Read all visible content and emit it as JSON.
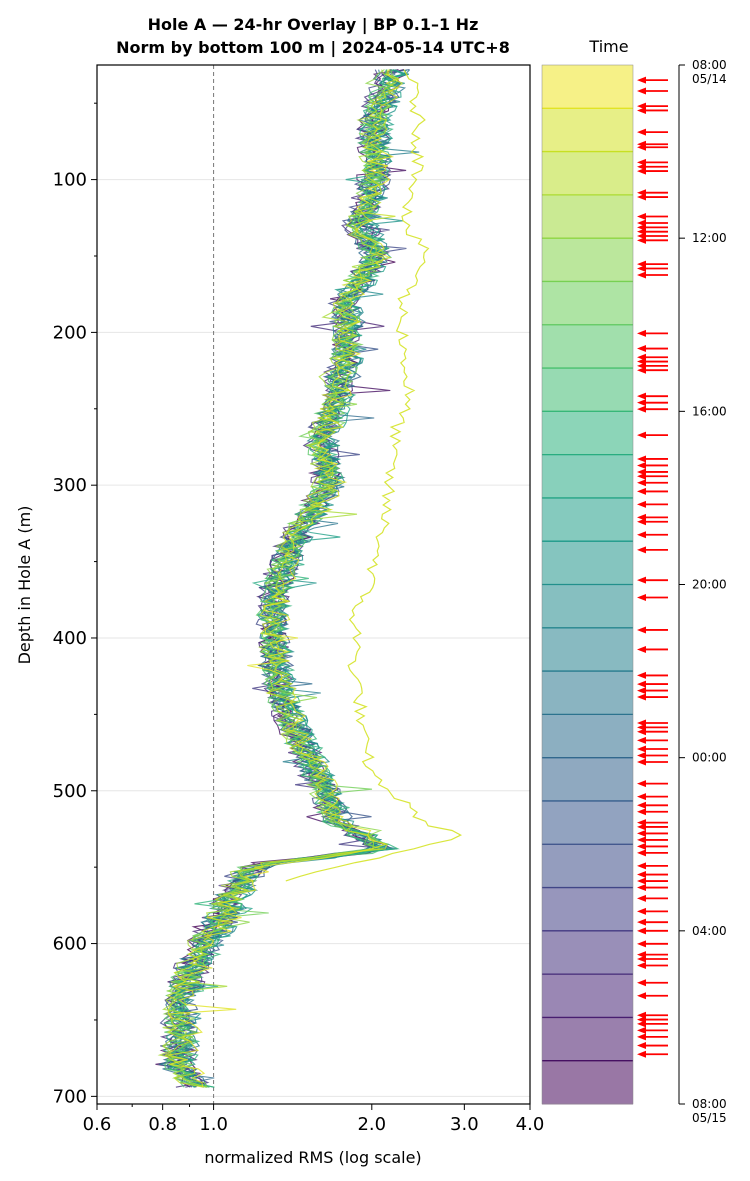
{
  "chart_data": {
    "type": "line",
    "title": "Hole A — 24-hr Overlay  |  BP 0.1–1 Hz",
    "subtitle": "Norm by bottom 100 m  |  2024-05-14 UTC+8",
    "xlabel": "normalized RMS  (log scale)",
    "ylabel": "Depth in Hole A (m)",
    "xscale": "log",
    "xlim": [
      0.6,
      4.0
    ],
    "ylim": [
      705,
      25
    ],
    "x_ticks": [
      "0.6",
      "0.8",
      "1.0",
      "2.0",
      "3.0",
      "4.0"
    ],
    "y_ticks": [
      "100",
      "200",
      "300",
      "400",
      "500",
      "600",
      "700"
    ],
    "reference_line": {
      "x": 1.0,
      "style": "dashed",
      "color": "#777777"
    },
    "grid": "horizontal",
    "series_count": 24,
    "colormap": "viridis",
    "depth_profile": {
      "depth": [
        28,
        60,
        100,
        130,
        150,
        180,
        210,
        240,
        270,
        300,
        330,
        360,
        385,
        400,
        420,
        440,
        460,
        490,
        520,
        538,
        548,
        560,
        580,
        600,
        620,
        640,
        660,
        680,
        695
      ],
      "median_rms": [
        2.2,
        2.02,
        2.02,
        1.9,
        2.03,
        1.78,
        1.8,
        1.72,
        1.6,
        1.65,
        1.45,
        1.33,
        1.29,
        1.3,
        1.32,
        1.34,
        1.43,
        1.57,
        1.72,
        2.08,
        1.2,
        1.12,
        1.05,
        0.96,
        0.9,
        0.86,
        0.87,
        0.85,
        0.93
      ]
    },
    "anomalous_profile": {
      "hour": "08:00",
      "depth": [
        28,
        60,
        100,
        130,
        150,
        180,
        210,
        240,
        270,
        300,
        330,
        360,
        385,
        400,
        420,
        440,
        460,
        490,
        520,
        530,
        548,
        560
      ],
      "rms": [
        2.35,
        2.45,
        2.45,
        2.3,
        2.55,
        2.28,
        2.3,
        2.35,
        2.2,
        2.15,
        2.1,
        2.0,
        1.85,
        1.87,
        1.85,
        1.9,
        1.9,
        2.0,
        2.5,
        2.95,
        1.75,
        1.3
      ]
    },
    "colorbar": {
      "label": "Time",
      "ticks": [
        {
          "label": "08:00",
          "sublabel": "05/14",
          "hour": 0
        },
        {
          "label": "12:00",
          "sublabel": "",
          "hour": 4
        },
        {
          "label": "16:00",
          "sublabel": "",
          "hour": 8
        },
        {
          "label": "20:00",
          "sublabel": "",
          "hour": 12
        },
        {
          "label": "00:00",
          "sublabel": "",
          "hour": 16
        },
        {
          "label": "04:00",
          "sublabel": "",
          "hour": 20
        },
        {
          "label": "08:00",
          "sublabel": "05/15",
          "hour": 24
        }
      ],
      "colors": [
        "#440154",
        "#482173",
        "#433e85",
        "#38588c",
        "#2d708e",
        "#25858e",
        "#1e9b8a",
        "#2ab07f",
        "#52c569",
        "#86d549",
        "#c2df23",
        "#fde725"
      ]
    },
    "event_marks_hours": [
      0.35,
      0.6,
      0.95,
      1.05,
      1.55,
      1.83,
      1.9,
      2.25,
      2.35,
      2.45,
      2.95,
      3.05,
      3.5,
      3.65,
      3.75,
      3.85,
      3.95,
      4.05,
      4.6,
      4.7,
      4.85,
      6.2,
      6.55,
      6.75,
      6.85,
      6.95,
      7.05,
      7.65,
      7.8,
      7.95,
      8.55,
      9.1,
      9.25,
      9.4,
      9.5,
      9.65,
      9.85,
      10.15,
      10.45,
      10.55,
      10.85,
      11.2,
      11.9,
      12.3,
      13.05,
      13.5,
      14.1,
      14.3,
      14.45,
      14.6,
      15.2,
      15.3,
      15.4,
      15.6,
      15.8,
      15.95,
      16.1,
      16.6,
      16.9,
      17.1,
      17.25,
      17.5,
      17.6,
      17.75,
      17.9,
      18.05,
      18.2,
      18.5,
      18.7,
      18.85,
      19.0,
      19.25,
      19.55,
      19.8,
      20.0,
      20.3,
      20.55,
      20.65,
      20.8,
      21.2,
      21.5,
      21.95,
      22.05,
      22.15,
      22.3,
      22.45,
      22.65,
      22.85
    ]
  }
}
